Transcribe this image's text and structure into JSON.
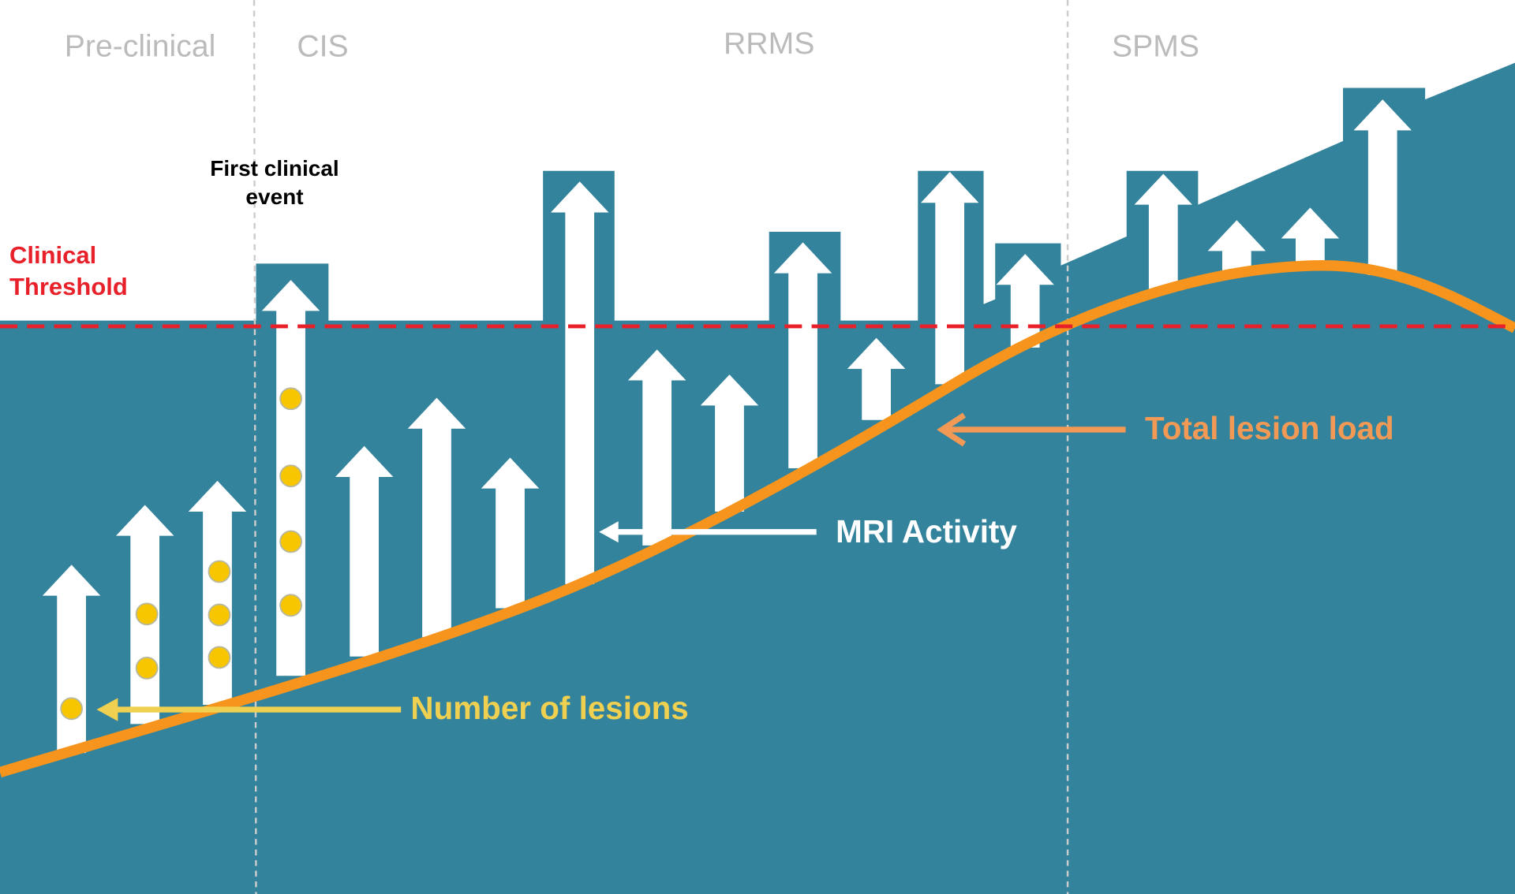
{
  "phases": [
    "Pre-clinical",
    "CIS",
    "RRMS",
    "SPMS"
  ],
  "threshold_label": "Clinical Threshold",
  "event_label": "First clinical event",
  "callouts": {
    "total_lesion_load": "Total lesion load",
    "mri_activity": "MRI Activity",
    "number_of_lesions": "Number of lesions"
  }
}
